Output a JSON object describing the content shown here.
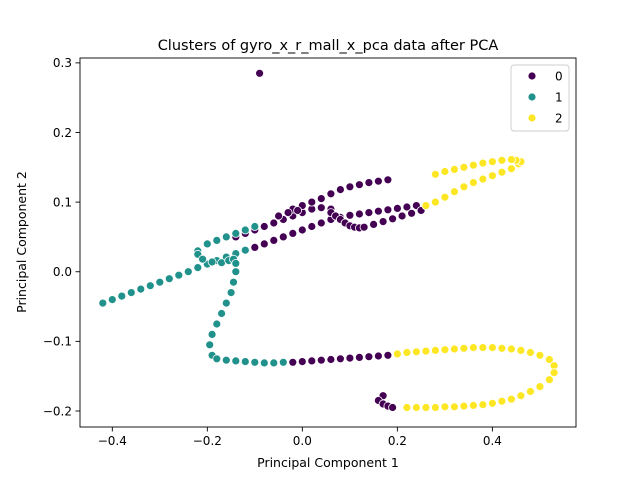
{
  "chart_data": {
    "type": "scatter",
    "title": "Clusters of gyro_x_r_mall_x_pca data after PCA",
    "xlabel": "Principal Component 1",
    "ylabel": "Principal Component 2",
    "xlim": [
      -0.468,
      0.576
    ],
    "ylim": [
      -0.223,
      0.307
    ],
    "xticks": [
      -0.4,
      -0.2,
      0.0,
      0.2,
      0.4
    ],
    "xtick_labels": [
      "−0.4",
      "−0.2",
      "0.0",
      "0.2",
      "0.4"
    ],
    "yticks": [
      -0.2,
      -0.1,
      0.0,
      0.1,
      0.2,
      0.3
    ],
    "ytick_labels": [
      "−0.2",
      "−0.1",
      "0.0",
      "0.1",
      "0.2",
      "0.3"
    ],
    "grid": false,
    "legend": {
      "placement": "top-right",
      "entries": [
        {
          "label": "0",
          "color": "#440154"
        },
        {
          "label": "1",
          "color": "#21918c"
        },
        {
          "label": "2",
          "color": "#fde725"
        }
      ]
    },
    "series": [
      {
        "name": "0",
        "color": "#440154",
        "points": [
          [
            -0.09,
            0.285
          ],
          [
            -0.14,
            0.05
          ],
          [
            -0.12,
            0.055
          ],
          [
            -0.1,
            0.06
          ],
          [
            -0.08,
            0.065
          ],
          [
            -0.06,
            0.07
          ],
          [
            -0.04,
            0.075
          ],
          [
            -0.02,
            0.08
          ],
          [
            0.0,
            0.085
          ],
          [
            0.02,
            0.09
          ],
          [
            0.04,
            0.092
          ],
          [
            0.06,
            0.09
          ],
          [
            -0.02,
            0.09
          ],
          [
            0.0,
            0.095
          ],
          [
            0.02,
            0.1
          ],
          [
            0.04,
            0.105
          ],
          [
            0.06,
            0.112
          ],
          [
            0.08,
            0.118
          ],
          [
            0.1,
            0.122
          ],
          [
            0.12,
            0.125
          ],
          [
            0.14,
            0.128
          ],
          [
            0.16,
            0.13
          ],
          [
            0.18,
            0.132
          ],
          [
            -0.05,
            0.08
          ],
          [
            -0.03,
            0.085
          ],
          [
            -0.01,
            0.088
          ],
          [
            -0.1,
            0.035
          ],
          [
            -0.08,
            0.04
          ],
          [
            -0.06,
            0.045
          ],
          [
            -0.04,
            0.05
          ],
          [
            -0.02,
            0.055
          ],
          [
            0.0,
            0.06
          ],
          [
            0.02,
            0.065
          ],
          [
            0.04,
            0.07
          ],
          [
            0.06,
            0.075
          ],
          [
            0.08,
            0.078
          ],
          [
            0.1,
            0.081
          ],
          [
            0.12,
            0.083
          ],
          [
            0.14,
            0.085
          ],
          [
            0.16,
            0.087
          ],
          [
            0.18,
            0.089
          ],
          [
            0.2,
            0.091
          ],
          [
            0.22,
            0.093
          ],
          [
            0.24,
            0.095
          ],
          [
            0.06,
            0.085
          ],
          [
            0.07,
            0.08
          ],
          [
            0.08,
            0.075
          ],
          [
            0.09,
            0.07
          ],
          [
            0.1,
            0.066
          ],
          [
            0.11,
            0.064
          ],
          [
            0.12,
            0.063
          ],
          [
            0.13,
            0.064
          ],
          [
            0.15,
            0.068
          ],
          [
            0.17,
            0.072
          ],
          [
            0.19,
            0.076
          ],
          [
            0.21,
            0.08
          ],
          [
            0.23,
            0.084
          ],
          [
            0.25,
            0.088
          ],
          [
            -0.02,
            -0.13
          ],
          [
            0.0,
            -0.129
          ],
          [
            0.02,
            -0.128
          ],
          [
            0.04,
            -0.127
          ],
          [
            0.06,
            -0.126
          ],
          [
            0.08,
            -0.125
          ],
          [
            0.1,
            -0.124
          ],
          [
            0.12,
            -0.123
          ],
          [
            0.14,
            -0.122
          ],
          [
            0.16,
            -0.121
          ],
          [
            0.18,
            -0.12
          ],
          [
            0.17,
            -0.178
          ],
          [
            0.16,
            -0.185
          ],
          [
            0.17,
            -0.19
          ],
          [
            0.18,
            -0.193
          ],
          [
            0.19,
            -0.195
          ]
        ]
      },
      {
        "name": "1",
        "color": "#21918c",
        "points": [
          [
            -0.42,
            -0.045
          ],
          [
            -0.4,
            -0.04
          ],
          [
            -0.38,
            -0.035
          ],
          [
            -0.36,
            -0.03
          ],
          [
            -0.34,
            -0.025
          ],
          [
            -0.32,
            -0.02
          ],
          [
            -0.3,
            -0.015
          ],
          [
            -0.28,
            -0.01
          ],
          [
            -0.26,
            -0.005
          ],
          [
            -0.24,
            0.0
          ],
          [
            -0.22,
            0.006
          ],
          [
            -0.2,
            0.011
          ],
          [
            -0.18,
            0.016
          ],
          [
            -0.16,
            0.021
          ],
          [
            -0.14,
            0.026
          ],
          [
            -0.12,
            0.031
          ],
          [
            -0.22,
            0.03
          ],
          [
            -0.2,
            0.04
          ],
          [
            -0.18,
            0.045
          ],
          [
            -0.16,
            0.05
          ],
          [
            -0.14,
            0.055
          ],
          [
            -0.12,
            0.06
          ],
          [
            -0.1,
            0.065
          ],
          [
            -0.22,
            0.025
          ],
          [
            -0.21,
            0.018
          ],
          [
            -0.19,
            0.014
          ],
          [
            -0.17,
            0.013
          ],
          [
            -0.155,
            0.016
          ],
          [
            -0.145,
            0.018
          ],
          [
            -0.14,
            0.012
          ],
          [
            -0.14,
            0.0
          ],
          [
            -0.145,
            -0.015
          ],
          [
            -0.15,
            -0.03
          ],
          [
            -0.16,
            -0.045
          ],
          [
            -0.17,
            -0.06
          ],
          [
            -0.18,
            -0.075
          ],
          [
            -0.19,
            -0.09
          ],
          [
            -0.195,
            -0.105
          ],
          [
            -0.19,
            -0.12
          ],
          [
            -0.18,
            -0.125
          ],
          [
            -0.16,
            -0.127
          ],
          [
            -0.14,
            -0.128
          ],
          [
            -0.12,
            -0.129
          ],
          [
            -0.1,
            -0.13
          ],
          [
            -0.08,
            -0.131
          ],
          [
            -0.06,
            -0.131
          ],
          [
            -0.04,
            -0.13
          ]
        ]
      },
      {
        "name": "2",
        "color": "#fde725",
        "points": [
          [
            0.26,
            0.095
          ],
          [
            0.28,
            0.1
          ],
          [
            0.3,
            0.107
          ],
          [
            0.32,
            0.115
          ],
          [
            0.34,
            0.122
          ],
          [
            0.36,
            0.128
          ],
          [
            0.38,
            0.133
          ],
          [
            0.4,
            0.138
          ],
          [
            0.42,
            0.143
          ],
          [
            0.44,
            0.148
          ],
          [
            0.455,
            0.155
          ],
          [
            0.46,
            0.158
          ],
          [
            0.45,
            0.16
          ],
          [
            0.28,
            0.14
          ],
          [
            0.3,
            0.144
          ],
          [
            0.32,
            0.147
          ],
          [
            0.34,
            0.15
          ],
          [
            0.36,
            0.153
          ],
          [
            0.38,
            0.156
          ],
          [
            0.4,
            0.158
          ],
          [
            0.42,
            0.16
          ],
          [
            0.44,
            0.161
          ],
          [
            0.2,
            -0.118
          ],
          [
            0.22,
            -0.116
          ],
          [
            0.24,
            -0.115
          ],
          [
            0.26,
            -0.114
          ],
          [
            0.28,
            -0.113
          ],
          [
            0.3,
            -0.112
          ],
          [
            0.32,
            -0.111
          ],
          [
            0.34,
            -0.11
          ],
          [
            0.36,
            -0.109
          ],
          [
            0.38,
            -0.109
          ],
          [
            0.4,
            -0.109
          ],
          [
            0.42,
            -0.11
          ],
          [
            0.44,
            -0.111
          ],
          [
            0.46,
            -0.113
          ],
          [
            0.48,
            -0.116
          ],
          [
            0.5,
            -0.12
          ],
          [
            0.52,
            -0.126
          ],
          [
            0.53,
            -0.135
          ],
          [
            0.53,
            -0.145
          ],
          [
            0.52,
            -0.155
          ],
          [
            0.5,
            -0.165
          ],
          [
            0.48,
            -0.172
          ],
          [
            0.46,
            -0.178
          ],
          [
            0.44,
            -0.183
          ],
          [
            0.42,
            -0.186
          ],
          [
            0.4,
            -0.189
          ],
          [
            0.38,
            -0.191
          ],
          [
            0.36,
            -0.192
          ],
          [
            0.34,
            -0.193
          ],
          [
            0.32,
            -0.194
          ],
          [
            0.3,
            -0.194
          ],
          [
            0.28,
            -0.195
          ],
          [
            0.26,
            -0.195
          ],
          [
            0.24,
            -0.195
          ],
          [
            0.22,
            -0.195
          ]
        ]
      }
    ]
  }
}
